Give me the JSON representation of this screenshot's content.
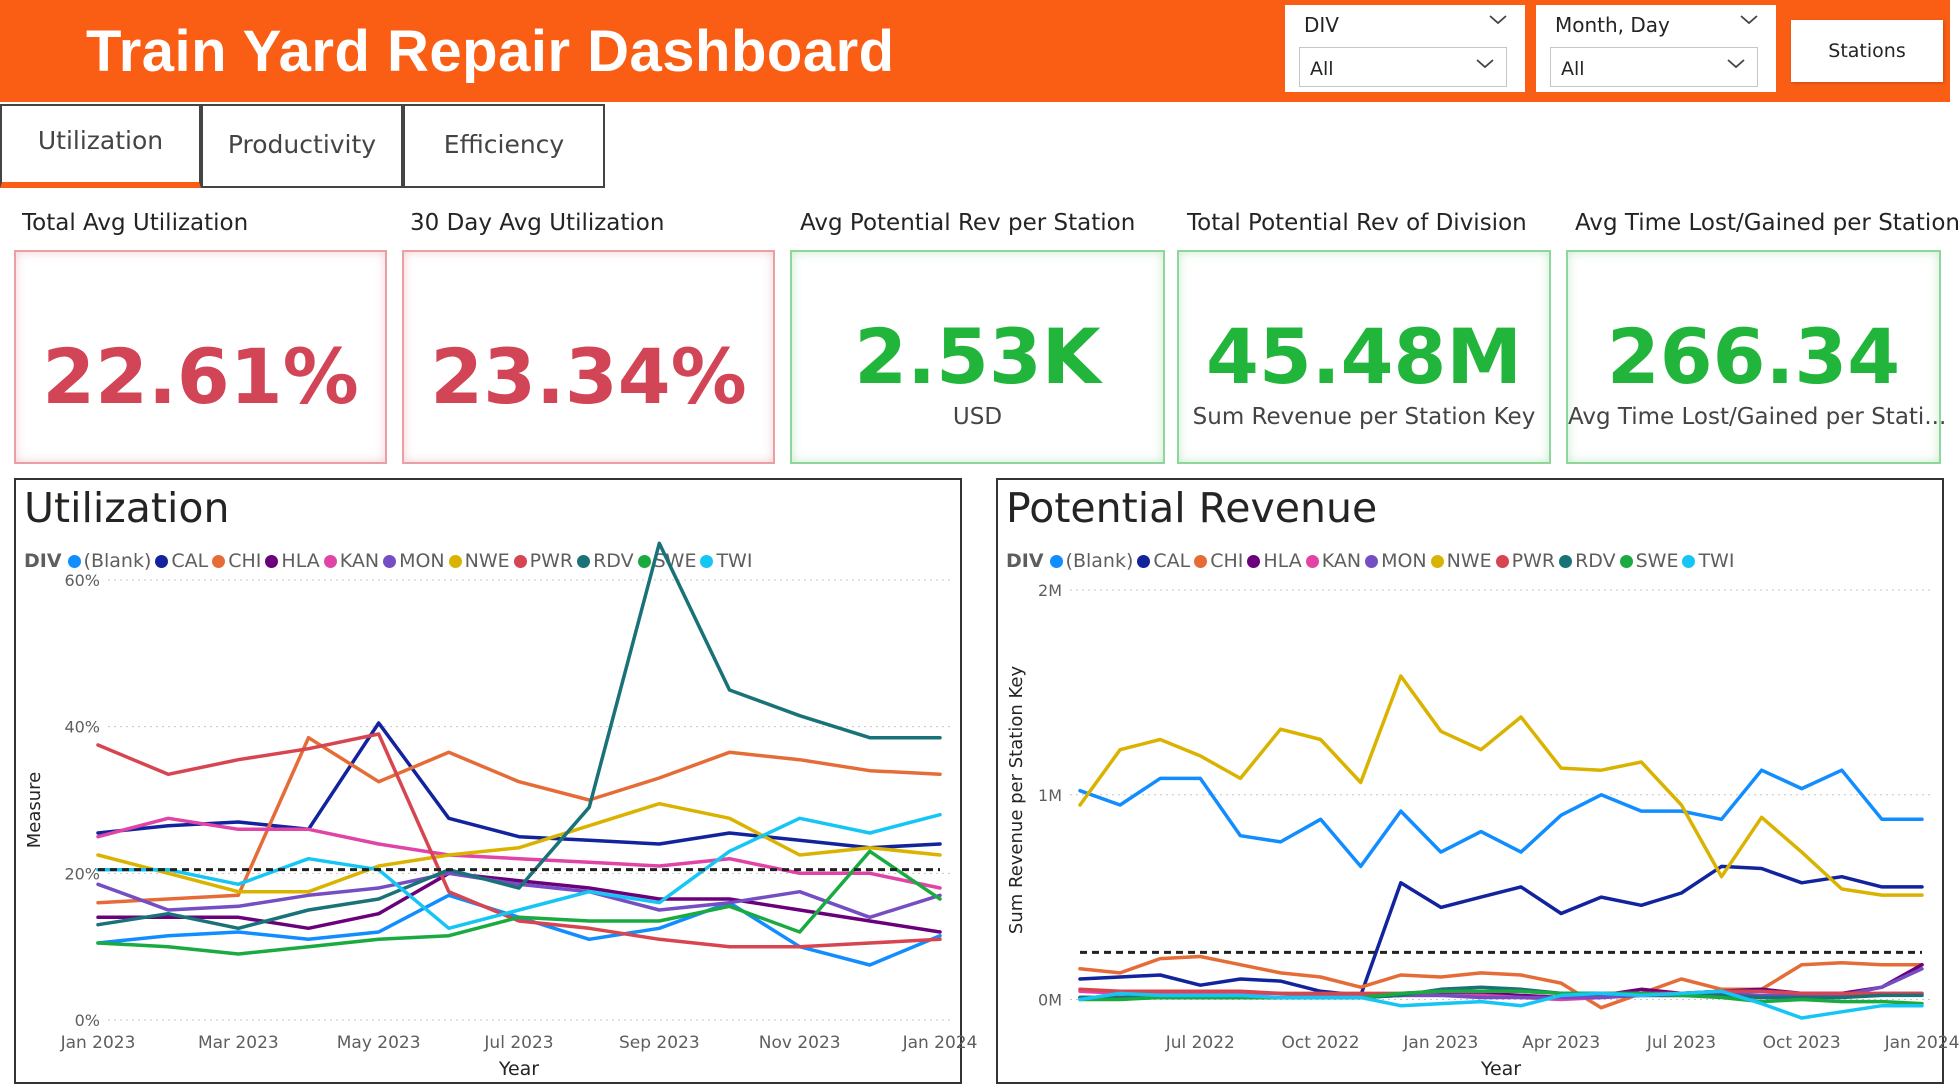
{
  "header": {
    "title": "Train Yard Repair Dashboard",
    "slicers": [
      {
        "label": "DIV",
        "value": "All"
      },
      {
        "label": "Month, Day",
        "value": "All"
      }
    ],
    "stations_button": "Stations"
  },
  "tabs": [
    {
      "label": "Utilization",
      "active": true
    },
    {
      "label": "Productivity",
      "active": false
    },
    {
      "label": "Efficiency",
      "active": false
    }
  ],
  "kpis": [
    {
      "title": "Total Avg Utilization",
      "value": "22.61%",
      "subtitle": "",
      "color": "#d14556"
    },
    {
      "title": "30 Day Avg Utilization",
      "value": "23.34%",
      "subtitle": "",
      "color": "#d14556"
    },
    {
      "title": "Avg Potential Rev per Station",
      "value": "2.53K",
      "subtitle": "USD",
      "color": "#22b53b"
    },
    {
      "title": "Total Potential Rev of Division",
      "value": "45.48M",
      "subtitle": "Sum Revenue per Station Key",
      "color": "#22b53b"
    },
    {
      "title": "Avg Time Lost/Gained per Station",
      "value": "266.34",
      "subtitle": "Avg Time Lost/Gained per Stati...",
      "color": "#22b53b"
    }
  ],
  "legend": {
    "title": "DIV",
    "items": [
      {
        "name": "(Blank)",
        "color": "#118dff"
      },
      {
        "name": "CAL",
        "color": "#12239e"
      },
      {
        "name": "CHI",
        "color": "#e66c37"
      },
      {
        "name": "HLA",
        "color": "#6b007b"
      },
      {
        "name": "KAN",
        "color": "#e044a7"
      },
      {
        "name": "MON",
        "color": "#744ec2"
      },
      {
        "name": "NWE",
        "color": "#d9b300"
      },
      {
        "name": "PWR",
        "color": "#d64550"
      },
      {
        "name": "RDV",
        "color": "#197278"
      },
      {
        "name": "SWE",
        "color": "#1aab40"
      },
      {
        "name": "TWI",
        "color": "#15c6f4"
      }
    ]
  },
  "chart_data": [
    {
      "type": "line",
      "title": "Utilization",
      "xlabel": "Year",
      "ylabel": "Measure",
      "x": [
        "Jan 2023",
        "Feb 2023",
        "Mar 2023",
        "Apr 2023",
        "May 2023",
        "Jun 2023",
        "Jul 2023",
        "Aug 2023",
        "Sep 2023",
        "Oct 2023",
        "Nov 2023",
        "Dec 2023",
        "Jan 2024"
      ],
      "x_ticks": [
        "Jan 2023",
        "Mar 2023",
        "May 2023",
        "Jul 2023",
        "Sep 2023",
        "Nov 2023",
        "Jan 2024"
      ],
      "ylim": [
        0,
        60
      ],
      "y_ticks": [
        {
          "value": 0,
          "label": "0%"
        },
        {
          "value": 20,
          "label": "20%"
        },
        {
          "value": 40,
          "label": "40%"
        },
        {
          "value": 60,
          "label": "60%"
        }
      ],
      "average_line": 20.5,
      "grid": true,
      "legend_position": "top-left",
      "series": [
        {
          "name": "(Blank)",
          "color": "#118dff",
          "values": [
            10.5,
            11.5,
            12,
            11,
            12,
            17,
            14,
            11,
            12.5,
            16,
            10,
            7.5,
            11.5
          ]
        },
        {
          "name": "CAL",
          "color": "#12239e",
          "values": [
            25.5,
            26.5,
            27,
            26,
            40.5,
            27.5,
            25,
            24.5,
            24,
            25.5,
            24.5,
            23.5,
            24
          ]
        },
        {
          "name": "CHI",
          "color": "#e66c37",
          "values": [
            16,
            16.5,
            17,
            38.5,
            32.5,
            36.5,
            32.5,
            30,
            33,
            36.5,
            35.5,
            34,
            33.5
          ]
        },
        {
          "name": "HLA",
          "color": "#6b007b",
          "values": [
            14,
            14,
            14,
            12.5,
            14.5,
            20,
            19,
            18,
            16.5,
            16.5,
            15,
            13.5,
            12
          ]
        },
        {
          "name": "KAN",
          "color": "#e044a7",
          "values": [
            25,
            27.5,
            26,
            26,
            24,
            22.5,
            22,
            21.5,
            21,
            22,
            20,
            20,
            18
          ]
        },
        {
          "name": "MON",
          "color": "#744ec2",
          "values": [
            18.5,
            15,
            15.5,
            17,
            18,
            20,
            18.5,
            17.5,
            15,
            16,
            17.5,
            14,
            17
          ]
        },
        {
          "name": "NWE",
          "color": "#d9b300",
          "values": [
            22.5,
            20,
            17.5,
            17.5,
            21,
            22.5,
            23.5,
            26.5,
            29.5,
            27.5,
            22.5,
            23.5,
            22.5
          ]
        },
        {
          "name": "PWR",
          "color": "#d64550",
          "values": [
            37.5,
            33.5,
            35.5,
            37,
            39,
            17.5,
            13.5,
            12.5,
            11,
            10,
            10,
            10.5,
            11
          ]
        },
        {
          "name": "RDV",
          "color": "#197278",
          "values": [
            13,
            14.5,
            12.5,
            15,
            16.5,
            20.5,
            18,
            29,
            65,
            45,
            41.5,
            38.5,
            38.5
          ]
        },
        {
          "name": "SWE",
          "color": "#1aab40",
          "values": [
            10.5,
            10,
            9,
            10,
            11,
            11.5,
            14,
            13.5,
            13.5,
            15.5,
            12,
            23,
            16.5
          ]
        },
        {
          "name": "TWI",
          "color": "#15c6f4",
          "values": [
            20.5,
            20.5,
            18.5,
            22,
            20.5,
            12.5,
            15,
            17.5,
            16,
            23,
            27.5,
            25.5,
            28
          ]
        }
      ]
    },
    {
      "type": "line",
      "title": "Potential Revenue",
      "xlabel": "Year",
      "ylabel": "Sum Revenue per Station Key",
      "x": [
        "Apr 2022",
        "May 2022",
        "Jun 2022",
        "Jul 2022",
        "Aug 2022",
        "Sep 2022",
        "Oct 2022",
        "Nov 2022",
        "Dec 2022",
        "Jan 2023",
        "Feb 2023",
        "Mar 2023",
        "Apr 2023",
        "May 2023",
        "Jun 2023",
        "Jul 2023",
        "Aug 2023",
        "Sep 2023",
        "Oct 2023",
        "Nov 2023",
        "Dec 2023",
        "Jan 2024"
      ],
      "x_ticks": [
        "Jul 2022",
        "Oct 2022",
        "Jan 2023",
        "Apr 2023",
        "Jul 2023",
        "Oct 2023",
        "Jan 2024"
      ],
      "ylim": [
        -0.1,
        2.0
      ],
      "y_ticks": [
        {
          "value": 0,
          "label": "0M"
        },
        {
          "value": 1,
          "label": "1M"
        },
        {
          "value": 2,
          "label": "2M"
        }
      ],
      "y_unit": "M",
      "average_line": 0.23,
      "grid": true,
      "legend_position": "top-left",
      "series": [
        {
          "name": "(Blank)",
          "color": "#118dff",
          "values": [
            1.02,
            0.95,
            1.08,
            1.08,
            0.8,
            0.77,
            0.88,
            0.65,
            0.92,
            0.72,
            0.82,
            0.72,
            0.9,
            1.0,
            0.92,
            0.92,
            0.88,
            1.12,
            1.03,
            1.12,
            0.88,
            0.88
          ]
        },
        {
          "name": "CAL",
          "color": "#12239e",
          "values": [
            0.1,
            0.11,
            0.12,
            0.07,
            0.1,
            0.09,
            0.04,
            0.02,
            0.57,
            0.45,
            0.5,
            0.55,
            0.42,
            0.5,
            0.46,
            0.52,
            0.65,
            0.64,
            0.57,
            0.6,
            0.55,
            0.55
          ]
        },
        {
          "name": "CHI",
          "color": "#e66c37",
          "values": [
            0.15,
            0.13,
            0.2,
            0.21,
            0.17,
            0.13,
            0.11,
            0.06,
            0.12,
            0.11,
            0.13,
            0.12,
            0.08,
            -0.04,
            0.03,
            0.1,
            0.05,
            0.05,
            0.17,
            0.18,
            0.17,
            0.17
          ]
        },
        {
          "name": "HLA",
          "color": "#6b007b",
          "values": [
            0.01,
            0.01,
            0.01,
            0.01,
            0.01,
            0.01,
            0.01,
            0.01,
            0.02,
            0.03,
            0.03,
            0.02,
            0.01,
            0.02,
            0.05,
            0.03,
            0.04,
            0.05,
            0.03,
            0.03,
            0.06,
            0.17
          ]
        },
        {
          "name": "KAN",
          "color": "#e044a7",
          "values": [
            0.04,
            0.03,
            0.03,
            0.03,
            0.03,
            0.03,
            0.02,
            0.02,
            0.02,
            0.02,
            0.02,
            0.01,
            0.0,
            0.01,
            0.02,
            0.02,
            0.02,
            0.02,
            0.01,
            0.02,
            0.03,
            0.03
          ]
        },
        {
          "name": "MON",
          "color": "#744ec2",
          "values": [
            0.01,
            0.01,
            0.01,
            0.01,
            0.01,
            0.01,
            0.01,
            0.01,
            0.02,
            0.02,
            0.01,
            0.01,
            0.01,
            0.01,
            0.02,
            0.02,
            0.03,
            0.02,
            0.02,
            0.02,
            0.06,
            0.15
          ]
        },
        {
          "name": "NWE",
          "color": "#d9b300",
          "values": [
            0.95,
            1.22,
            1.27,
            1.19,
            1.08,
            1.32,
            1.27,
            1.06,
            1.58,
            1.31,
            1.22,
            1.38,
            1.13,
            1.12,
            1.16,
            0.95,
            0.6,
            0.89,
            0.72,
            0.54,
            0.51,
            0.51
          ]
        },
        {
          "name": "PWR",
          "color": "#d64550",
          "values": [
            0.05,
            0.04,
            0.04,
            0.04,
            0.04,
            0.03,
            0.03,
            0.03,
            0.03,
            0.04,
            0.04,
            0.04,
            0.03,
            0.03,
            0.03,
            0.03,
            0.04,
            0.04,
            0.03,
            0.03,
            0.03,
            0.03
          ]
        },
        {
          "name": "RDV",
          "color": "#197278",
          "values": [
            0.01,
            0.01,
            0.01,
            0.01,
            0.01,
            0.01,
            0.01,
            0.01,
            0.02,
            0.05,
            0.06,
            0.05,
            0.03,
            0.03,
            0.02,
            0.02,
            0.02,
            0.01,
            0.01,
            0.01,
            0.02,
            0.02
          ]
        },
        {
          "name": "SWE",
          "color": "#1aab40",
          "values": [
            0.0,
            0.0,
            0.01,
            0.01,
            0.01,
            0.01,
            0.01,
            0.01,
            0.03,
            0.04,
            0.04,
            0.04,
            0.03,
            0.03,
            0.03,
            0.02,
            0.01,
            -0.01,
            0.0,
            -0.01,
            -0.01,
            -0.02
          ]
        },
        {
          "name": "TWI",
          "color": "#15c6f4",
          "values": [
            0.0,
            0.03,
            0.02,
            0.02,
            0.02,
            0.01,
            0.01,
            0.01,
            -0.03,
            -0.02,
            -0.01,
            -0.03,
            0.02,
            0.03,
            0.02,
            0.03,
            0.04,
            -0.02,
            -0.09,
            -0.06,
            -0.03,
            -0.03
          ]
        }
      ]
    }
  ]
}
